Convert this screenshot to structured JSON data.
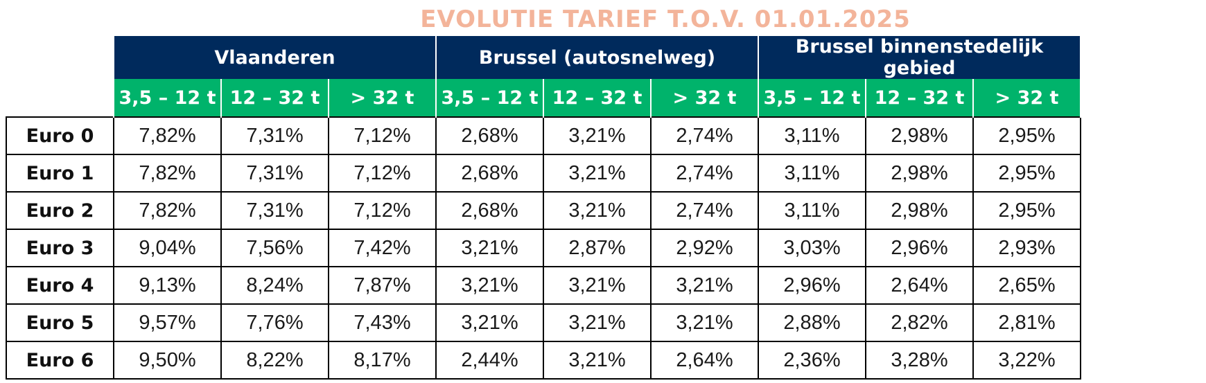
{
  "chart_data": {
    "type": "table",
    "title": "EVOLUTIE TARIEF T.O.V. 01.01.2025",
    "regions": [
      {
        "name": "Vlaanderen",
        "span": 3
      },
      {
        "name": "Brussel (autosnelweg)",
        "span": 3
      },
      {
        "name": "Brussel binnenstedelijk gebied",
        "span": 3
      }
    ],
    "columns": [
      "3,5 – 12 t",
      "12 – 32 t",
      "> 32 t",
      "3,5 – 12 t",
      "12 – 32 t",
      "> 32 t",
      "3,5 – 12 t",
      "12 – 32 t",
      "> 32 t"
    ],
    "rows": [
      {
        "label": "Euro 0",
        "values": [
          "7,82%",
          "7,31%",
          "7,12%",
          "2,68%",
          "3,21%",
          "2,74%",
          "3,11%",
          "2,98%",
          "2,95%"
        ]
      },
      {
        "label": "Euro 1",
        "values": [
          "7,82%",
          "7,31%",
          "7,12%",
          "2,68%",
          "3,21%",
          "2,74%",
          "3,11%",
          "2,98%",
          "2,95%"
        ]
      },
      {
        "label": "Euro 2",
        "values": [
          "7,82%",
          "7,31%",
          "7,12%",
          "2,68%",
          "3,21%",
          "2,74%",
          "3,11%",
          "2,98%",
          "2,95%"
        ]
      },
      {
        "label": "Euro 3",
        "values": [
          "9,04%",
          "7,56%",
          "7,42%",
          "3,21%",
          "2,87%",
          "2,92%",
          "3,03%",
          "2,96%",
          "2,93%"
        ]
      },
      {
        "label": "Euro 4",
        "values": [
          "9,13%",
          "8,24%",
          "7,87%",
          "3,21%",
          "3,21%",
          "3,21%",
          "2,96%",
          "2,64%",
          "2,65%"
        ]
      },
      {
        "label": "Euro 5",
        "values": [
          "9,57%",
          "7,76%",
          "7,43%",
          "3,21%",
          "3,21%",
          "3,21%",
          "2,88%",
          "2,82%",
          "2,81%"
        ]
      },
      {
        "label": "Euro 6",
        "values": [
          "9,50%",
          "8,22%",
          "8,17%",
          "2,44%",
          "3,21%",
          "2,64%",
          "2,36%",
          "3,28%",
          "3,22%"
        ]
      }
    ]
  },
  "colors": {
    "title": "#f3b49a",
    "region_header": "#002a5c",
    "weight_header": "#00b36b"
  }
}
